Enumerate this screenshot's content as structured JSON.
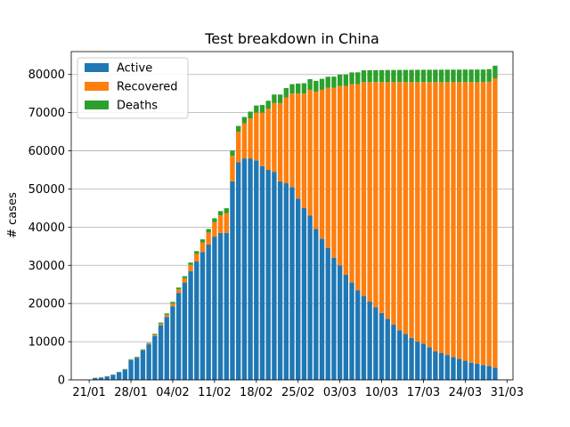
{
  "chart_data": {
    "type": "bar",
    "stacked": true,
    "title": "Test breakdown in China",
    "xlabel": "",
    "ylabel": "# cases",
    "ylim": [
      0,
      86000
    ],
    "xlim": [
      "2020-01-18",
      "2020-04-01"
    ],
    "yticks": [
      0,
      10000,
      20000,
      30000,
      40000,
      50000,
      60000,
      70000,
      80000
    ],
    "xticks": [
      {
        "date": "2020-01-21",
        "label": "21/01"
      },
      {
        "date": "2020-01-28",
        "label": "28/01"
      },
      {
        "date": "2020-02-04",
        "label": "04/02"
      },
      {
        "date": "2020-02-11",
        "label": "11/02"
      },
      {
        "date": "2020-02-18",
        "label": "18/02"
      },
      {
        "date": "2020-02-25",
        "label": "25/02"
      },
      {
        "date": "2020-03-03",
        "label": "03/03"
      },
      {
        "date": "2020-03-10",
        "label": "10/03"
      },
      {
        "date": "2020-03-17",
        "label": "17/03"
      },
      {
        "date": "2020-03-24",
        "label": "24/03"
      },
      {
        "date": "2020-03-31",
        "label": "31/03"
      }
    ],
    "grid": "y",
    "legend_position": "top-left",
    "x": [
      "2020-01-22",
      "2020-01-23",
      "2020-01-24",
      "2020-01-25",
      "2020-01-26",
      "2020-01-27",
      "2020-01-28",
      "2020-01-29",
      "2020-01-30",
      "2020-01-31",
      "2020-02-01",
      "2020-02-02",
      "2020-02-03",
      "2020-02-04",
      "2020-02-05",
      "2020-02-06",
      "2020-02-07",
      "2020-02-08",
      "2020-02-09",
      "2020-02-10",
      "2020-02-11",
      "2020-02-12",
      "2020-02-13",
      "2020-02-14",
      "2020-02-15",
      "2020-02-16",
      "2020-02-17",
      "2020-02-18",
      "2020-02-19",
      "2020-02-20",
      "2020-02-21",
      "2020-02-22",
      "2020-02-23",
      "2020-02-24",
      "2020-02-25",
      "2020-02-26",
      "2020-02-27",
      "2020-02-28",
      "2020-02-29",
      "2020-03-01",
      "2020-03-02",
      "2020-03-03",
      "2020-03-04",
      "2020-03-05",
      "2020-03-06",
      "2020-03-07",
      "2020-03-08",
      "2020-03-09",
      "2020-03-10",
      "2020-03-11",
      "2020-03-12",
      "2020-03-13",
      "2020-03-14",
      "2020-03-15",
      "2020-03-16",
      "2020-03-17",
      "2020-03-18",
      "2020-03-19",
      "2020-03-20",
      "2020-03-21",
      "2020-03-22",
      "2020-03-23",
      "2020-03-24",
      "2020-03-25",
      "2020-03-26",
      "2020-03-27",
      "2020-03-28",
      "2020-03-29"
    ],
    "series": [
      {
        "name": "Active",
        "color": "#1f77b4",
        "values": [
          500,
          600,
          900,
          1300,
          2000,
          2700,
          5200,
          5800,
          7700,
          9300,
          11500,
          14300,
          16500,
          19300,
          22800,
          25500,
          28500,
          31000,
          33500,
          35500,
          37500,
          38500,
          38500,
          52000,
          57000,
          58000,
          58000,
          57500,
          56000,
          55000,
          54500,
          52000,
          51500,
          50500,
          47500,
          45000,
          43000,
          39500,
          37000,
          34500,
          32000,
          30000,
          27500,
          25500,
          23500,
          22000,
          20500,
          19000,
          17500,
          16000,
          14500,
          13000,
          12000,
          11000,
          10000,
          9500,
          8500,
          7500,
          7000,
          6500,
          6000,
          5500,
          5000,
          4500,
          4200,
          3900,
          3600,
          3200
        ]
      },
      {
        "name": "Recovered",
        "color": "#ff7f0e",
        "values": [
          30,
          30,
          40,
          50,
          50,
          60,
          100,
          120,
          130,
          200,
          300,
          400,
          550,
          700,
          900,
          1100,
          1600,
          2000,
          2500,
          3100,
          3800,
          4600,
          5200,
          6700,
          8000,
          9200,
          10500,
          12500,
          14000,
          16000,
          18000,
          20500,
          22500,
          24500,
          27500,
          30000,
          33000,
          36000,
          39000,
          42000,
          44500,
          47000,
          49500,
          52000,
          54000,
          56000,
          57500,
          59000,
          60500,
          62000,
          63500,
          65000,
          66000,
          67000,
          68000,
          68500,
          69500,
          70500,
          71000,
          71500,
          72000,
          72500,
          73000,
          73500,
          73800,
          74100,
          74500,
          75800
        ]
      },
      {
        "name": "Deaths",
        "color": "#2ca02c",
        "values": [
          17,
          18,
          26,
          42,
          56,
          82,
          131,
          133,
          171,
          213,
          259,
          304,
          361,
          425,
          490,
          562,
          636,
          722,
          811,
          908,
          1017,
          1114,
          1260,
          1381,
          1524,
          1666,
          1772,
          1870,
          2007,
          2122,
          2247,
          2251,
          2458,
          2469,
          2629,
          2708,
          2770,
          2837,
          2872,
          2914,
          2947,
          2983,
          3015,
          3044,
          3072,
          3100,
          3123,
          3139,
          3161,
          3172,
          3180,
          3193,
          3203,
          3217,
          3230,
          3241,
          3249,
          3253,
          3259,
          3274,
          3274,
          3281,
          3285,
          3291,
          3296,
          3299,
          3304,
          3308
        ]
      }
    ]
  }
}
